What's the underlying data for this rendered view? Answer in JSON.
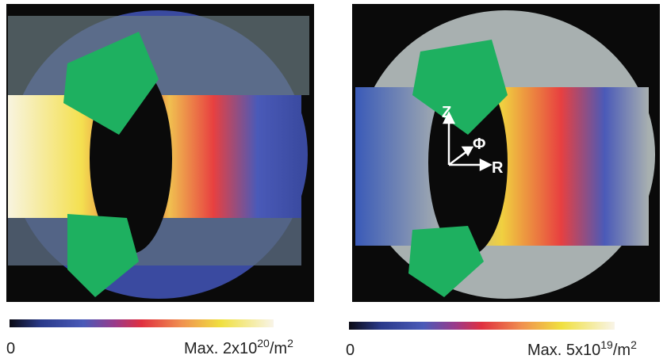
{
  "panels": [
    {
      "colorbar": {
        "min_label": "0",
        "max_label": {
          "text": "Max. 2x10",
          "exp": "20",
          "unit": "/m",
          "unit_exp": "2"
        }
      }
    },
    {
      "axes": {
        "z": "Z",
        "phi": "Φ",
        "r": "R"
      },
      "colorbar": {
        "min_label": "0",
        "max_label": {
          "text": "Max. 5x10",
          "exp": "19",
          "unit": "/m",
          "unit_exp": "2"
        }
      }
    }
  ]
}
